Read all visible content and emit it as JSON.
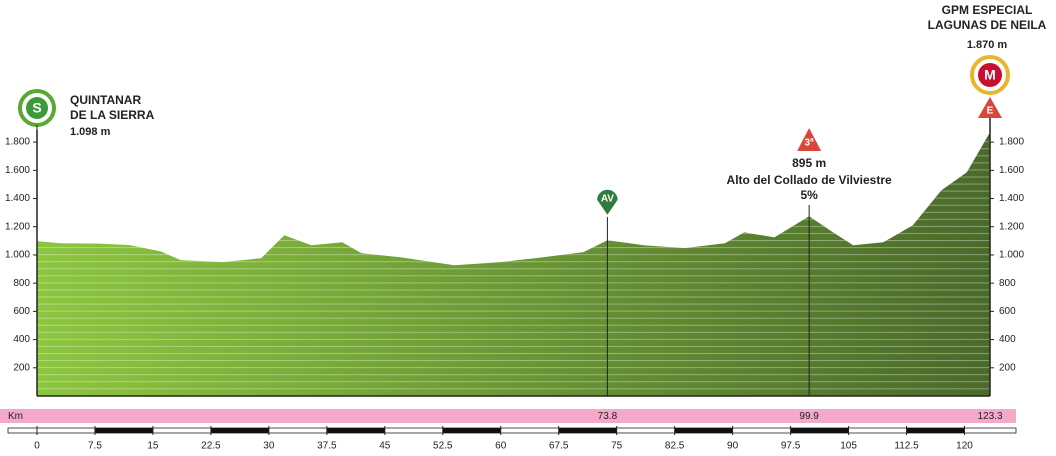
{
  "chart_data": {
    "type": "area",
    "x": [
      0,
      3,
      8,
      12,
      16,
      18.6,
      24,
      29,
      32,
      35.5,
      39.5,
      42,
      47,
      54,
      60,
      65.5,
      70.7,
      73.8,
      78.5,
      83.8,
      89,
      91.5,
      95.4,
      99.9,
      103,
      105.6,
      109.5,
      113.3,
      117,
      120.3,
      123.3
    ],
    "values": [
      1098,
      1083,
      1080,
      1070,
      1025,
      963,
      949,
      977,
      1140,
      1069,
      1090,
      1012,
      984,
      927,
      949,
      984,
      1020,
      1104,
      1069,
      1048,
      1083,
      1160,
      1125,
      1274,
      1160,
      1069,
      1090,
      1210,
      1458,
      1586,
      1870
    ],
    "xlim": [
      0,
      123.3
    ],
    "ylim": [
      0,
      1900
    ],
    "yticks": [
      200,
      400,
      600,
      800,
      {
        "value": 1000,
        "label": "1.000"
      },
      {
        "value": 1200,
        "label": "1.200"
      },
      {
        "value": 1400,
        "label": "1.400"
      },
      {
        "value": 1600,
        "label": "1.600"
      },
      {
        "value": 1800,
        "label": "1.800"
      }
    ],
    "xticks": [
      0,
      7.5,
      15,
      22.5,
      30,
      37.5,
      45,
      52.5,
      60,
      67.5,
      75,
      82.5,
      90,
      97.5,
      105,
      112.5,
      120
    ],
    "x_axis_label": "Km",
    "km_marks": [
      73.8,
      99.9,
      123.3
    ],
    "color_start": "#8cc63f",
    "color_end": "#4a6a2a",
    "start": {
      "badge": "S",
      "lines": [
        "QUINTANAR",
        "DE LA SIERRA"
      ],
      "altitude": "1.098 m"
    },
    "finish": {
      "badge": "M",
      "sub_badge": "E",
      "lines": [
        "GPM ESPECIAL",
        "LAGUNAS DE NEILA"
      ],
      "altitude": "1.870 m"
    },
    "sprint": {
      "badge": "AV"
    },
    "climb": {
      "category": "3ª",
      "altitude": "895 m",
      "name": "Alto del Collado de Vilviestre",
      "gradient": "5%"
    }
  }
}
